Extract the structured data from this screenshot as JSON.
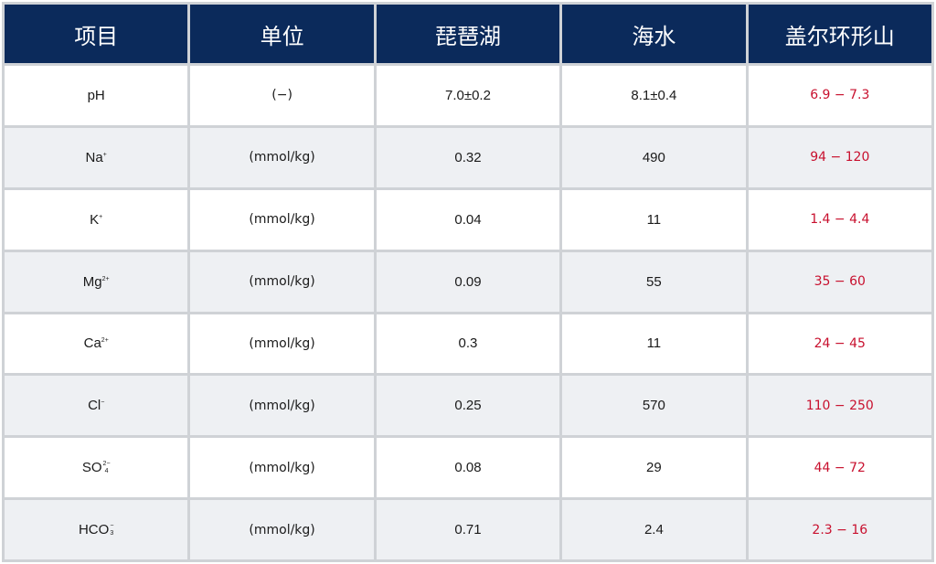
{
  "headers": [
    "项目",
    "单位",
    "琵琶湖",
    "海水",
    "盖尔环形山"
  ],
  "rows": [
    {
      "item": "pH",
      "sup": "",
      "sub": "",
      "unit": "(−)",
      "biwa": "7.0±0.2",
      "sea": "8.1±0.4",
      "gale": "6.9 − 7.3"
    },
    {
      "item": "Na",
      "sup": "+",
      "sub": "",
      "unit": "(mmol/kg)",
      "biwa": "0.32",
      "sea": "490",
      "gale": "94 − 120"
    },
    {
      "item": "K",
      "sup": "+",
      "sub": "",
      "unit": "(mmol/kg)",
      "biwa": "0.04",
      "sea": "11",
      "gale": "1.4 − 4.4"
    },
    {
      "item": "Mg",
      "sup": "2+",
      "sub": "",
      "unit": "(mmol/kg)",
      "biwa": "0.09",
      "sea": "55",
      "gale": "35 − 60"
    },
    {
      "item": "Ca",
      "sup": "2+",
      "sub": "",
      "unit": "(mmol/kg)",
      "biwa": "0.3",
      "sea": "11",
      "gale": "24 − 45"
    },
    {
      "item": "Cl",
      "sup": "−",
      "sub": "",
      "unit": "(mmol/kg)",
      "biwa": "0.25",
      "sea": "570",
      "gale": "110 − 250"
    },
    {
      "item": "SO",
      "sup": "2−",
      "sub": "4",
      "unit": "(mmol/kg)",
      "biwa": "0.08",
      "sea": "29",
      "gale": "44 − 72"
    },
    {
      "item": "HCO",
      "sup": "−",
      "sub": "3",
      "unit": "(mmol/kg)",
      "biwa": "0.71",
      "sea": "2.4",
      "gale": "2.3 − 16"
    }
  ],
  "colors": {
    "header_bg": "#0b2a5b",
    "header_text": "#ffffff",
    "highlight": "#c8102e",
    "alt_row": "#eef0f3"
  }
}
